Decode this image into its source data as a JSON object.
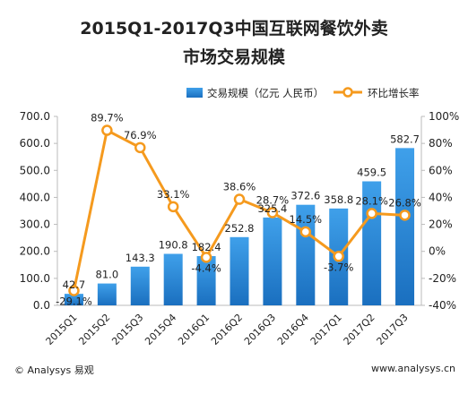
{
  "chart_data": {
    "type": "bar",
    "title_line1": "2015Q1-2017Q3中国互联网餐饮外卖",
    "title_line2": "市场交易规模",
    "categories": [
      "2015Q1",
      "2015Q2",
      "2015Q3",
      "2015Q4",
      "2016Q1",
      "2016Q2",
      "2016Q3",
      "2016Q4",
      "2017Q1",
      "2017Q2",
      "2017Q3"
    ],
    "series": [
      {
        "name": "交易规模（亿元 人民币）",
        "kind": "bar",
        "axis": "left",
        "values": [
          42.7,
          81.0,
          143.3,
          190.8,
          182.4,
          252.8,
          325.4,
          372.6,
          358.8,
          459.5,
          582.7
        ],
        "labels": [
          "42.7",
          "81.0",
          "143.3",
          "190.8",
          "182.4",
          "252.8",
          "325.4",
          "372.6",
          "358.8",
          "459.5",
          "582.7"
        ]
      },
      {
        "name": "环比增长率",
        "kind": "line",
        "axis": "right",
        "values": [
          -29.1,
          89.7,
          76.9,
          33.1,
          -4.4,
          38.6,
          28.7,
          14.5,
          -3.7,
          28.1,
          26.8
        ],
        "labels": [
          "-29.1%",
          "89.7%",
          "76.9%",
          "33.1%",
          "-4.4%",
          "38.6%",
          "28.7%",
          "14.5%",
          "-3.7%",
          "28.1%",
          "26.8%"
        ]
      }
    ],
    "y_left": {
      "min": 0,
      "max": 700,
      "ticks": [
        "0.0",
        "100.0",
        "200.0",
        "300.0",
        "400.0",
        "500.0",
        "600.0",
        "700.0"
      ]
    },
    "y_right": {
      "min": -40,
      "max": 100,
      "ticks": [
        "-40%",
        "-20%",
        "0%",
        "20%",
        "40%",
        "60%",
        "80%",
        "100%"
      ]
    },
    "legend_position": "top",
    "grid": false,
    "colors": {
      "bar_top": "#3fa0ea",
      "bar_bottom": "#1a6fbf",
      "line": "#f59a1e",
      "marker_fill": "#ffffff"
    }
  },
  "footer": {
    "left": "© Analysys 易观",
    "right": "www.analysys.cn"
  }
}
